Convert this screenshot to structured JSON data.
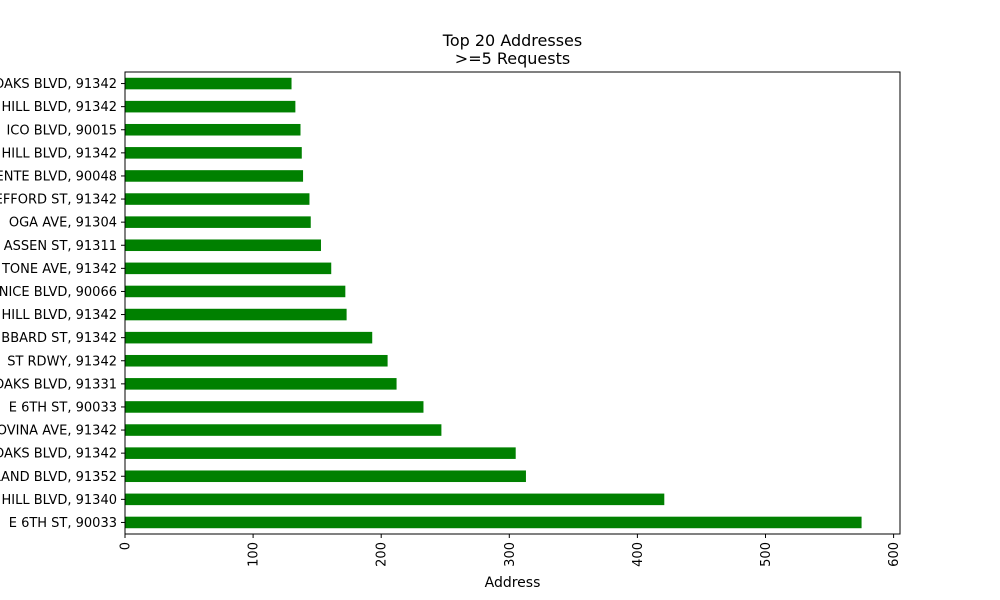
{
  "chart_data": {
    "type": "bar",
    "orientation": "horizontal",
    "title": [
      "Top 20 Addresses",
      ">=5 Requests"
    ],
    "xlabel": "Address",
    "ylabel": "",
    "xlim": [
      0,
      605
    ],
    "xticks": [
      0,
      100,
      200,
      300,
      400,
      500,
      600
    ],
    "grid": false,
    "bar_color": "#008000",
    "categories": [
      "E 6TH ST, 90033",
      "HILL BLVD, 91340",
      "LAND BLVD, 91352",
      "OAKS BLVD, 91342",
      "OVINA AVE, 91342",
      "E 6TH ST, 90033",
      "OAKS BLVD, 91331",
      "ST RDWY, 91342",
      "BBARD ST, 91342",
      "HILL BLVD, 91342",
      "NICE BLVD, 90066",
      "TONE AVE, 91342",
      "ASSEN ST, 91311",
      "OGA AVE, 91304",
      "EFFORD ST, 91342",
      "ENTE BLVD, 90048",
      "HILL BLVD, 91342",
      "ICO BLVD, 90015",
      "HILL BLVD, 91342",
      "OAKS BLVD, 91342"
    ],
    "values": [
      575,
      421,
      313,
      305,
      247,
      233,
      212,
      205,
      193,
      173,
      172,
      161,
      153,
      145,
      144,
      139,
      138,
      137,
      133,
      130
    ]
  }
}
